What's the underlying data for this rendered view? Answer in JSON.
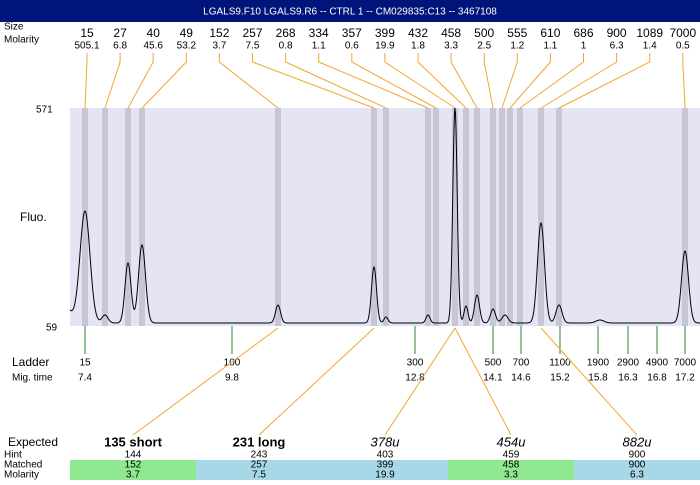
{
  "header": {
    "title": "LGALS9.F10  LGALS9.R6 -- CTRL 1 -- CM029835:C13 -- 3467108"
  },
  "peaks": {
    "size_label": "Size",
    "molarity_label": "Molarity",
    "sizes": [
      15,
      27,
      40,
      49,
      152,
      257,
      268,
      334,
      357,
      399,
      432,
      458,
      500,
      555,
      610,
      686,
      900,
      1089,
      7000
    ],
    "molarities": [
      505.1,
      6.8,
      45.6,
      53.2,
      3.7,
      7.5,
      0.8,
      1.1,
      0.6,
      19.9,
      1.8,
      3.3,
      2.5,
      1.2,
      1.1,
      1,
      6.3,
      1.4,
      0.5
    ]
  },
  "plot": {
    "y_label": "Fluo.",
    "y_top": 571,
    "y_bottom": 59
  },
  "ladder": {
    "label": "Ladder",
    "mig_label": "Mig. time",
    "sizes": [
      15,
      100,
      300,
      500,
      700,
      1100,
      1900,
      2900,
      4900,
      7000
    ],
    "mig_times": [
      7.4,
      9.8,
      12.8,
      14.1,
      14.6,
      15.2,
      15.8,
      16.3,
      16.8,
      17.2
    ]
  },
  "matches": {
    "row_labels": [
      "Expected",
      "Hint",
      "Matched",
      "Molarity"
    ],
    "columns": [
      {
        "expected": "135 short",
        "hint": 144,
        "matched": 152,
        "molarity": 3.7
      },
      {
        "expected": "231 long",
        "hint": 243,
        "matched": 257,
        "molarity": 7.5
      },
      {
        "expected": "378u",
        "hint": 403,
        "matched": 399,
        "molarity": 19.9
      },
      {
        "expected": "454u",
        "hint": 459,
        "matched": 458,
        "molarity": 3.3
      },
      {
        "expected": "882u",
        "hint": 900,
        "matched": 900,
        "molarity": 6.3
      }
    ]
  }
}
